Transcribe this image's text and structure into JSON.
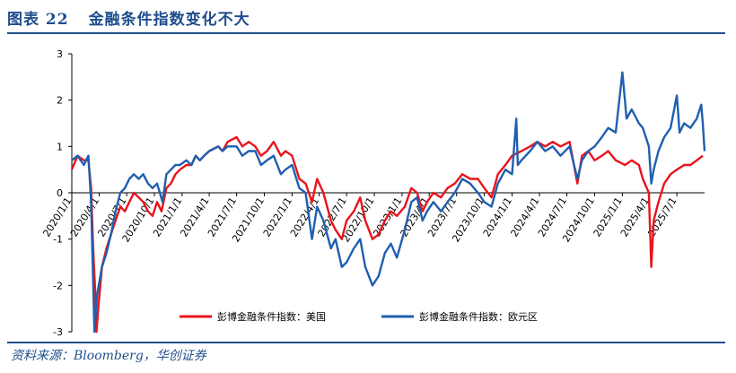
{
  "header": {
    "figure_label": "图表 22",
    "title": "金融条件指数变化不大"
  },
  "footer": {
    "source": "资料来源：Bloomberg，华创证券"
  },
  "colors": {
    "accent": "#1f4e8c",
    "us": "#e8141c",
    "eu": "#1f5fb0"
  },
  "chart_data": {
    "type": "line",
    "title": "",
    "xlabel": "",
    "ylabel": "",
    "ylim": [
      -3,
      3
    ],
    "yticks": [
      -3,
      -2,
      -1,
      0,
      1,
      2,
      3
    ],
    "xticks": [
      "2020/1/1",
      "2020/4/1",
      "2020/7/1",
      "2020/10/1",
      "2021/1/1",
      "2021/4/1",
      "2021/7/1",
      "2021/10/1",
      "2022/1/1",
      "2022/4/1",
      "2022/7/1",
      "2022/10/1",
      "2023/1/1",
      "2023/4/1",
      "2023/7/1",
      "2023/10/1",
      "2024/1/1",
      "2024/4/1",
      "2024/7/1",
      "2024/10/1",
      "2025/1/1",
      "2025/4/1",
      "2025/7/1"
    ],
    "xrange": [
      "2020/1/1",
      "2025/10/1"
    ],
    "legend_position": "bottom",
    "grid": false,
    "series": [
      {
        "name": "彭博金融条件指数：美国",
        "color": "#e8141c",
        "points": [
          [
            "2020/1/1",
            0.5
          ],
          [
            "2020/1/20",
            0.8
          ],
          [
            "2020/2/10",
            0.7
          ],
          [
            "2020/2/25",
            0.7
          ],
          [
            "2020/3/5",
            0.1
          ],
          [
            "2020/3/12",
            -1.2
          ],
          [
            "2020/3/20",
            -2.3
          ],
          [
            "2020/3/23",
            -3.0
          ],
          [
            "2020/3/30",
            -2.4
          ],
          [
            "2020/4/10",
            -1.6
          ],
          [
            "2020/4/25",
            -1.2
          ],
          [
            "2020/5/10",
            -0.9
          ],
          [
            "2020/5/25",
            -0.6
          ],
          [
            "2020/6/10",
            -0.3
          ],
          [
            "2020/6/25",
            -0.4
          ],
          [
            "2020/7/10",
            -0.2
          ],
          [
            "2020/7/25",
            0.0
          ],
          [
            "2020/8/10",
            -0.1
          ],
          [
            "2020/8/25",
            -0.2
          ],
          [
            "2020/9/10",
            -0.4
          ],
          [
            "2020/9/25",
            -0.5
          ],
          [
            "2020/10/10",
            -0.2
          ],
          [
            "2020/10/25",
            -0.4
          ],
          [
            "2020/11/10",
            0.1
          ],
          [
            "2020/11/25",
            0.2
          ],
          [
            "2020/12/10",
            0.4
          ],
          [
            "2020/12/25",
            0.5
          ],
          [
            "2021/1/15",
            0.6
          ],
          [
            "2021/2/1",
            0.6
          ],
          [
            "2021/2/15",
            0.8
          ],
          [
            "2021/3/1",
            0.7
          ],
          [
            "2021/3/15",
            0.8
          ],
          [
            "2021/4/1",
            0.9
          ],
          [
            "2021/5/1",
            1.0
          ],
          [
            "2021/5/15",
            0.9
          ],
          [
            "2021/6/1",
            1.1
          ],
          [
            "2021/7/1",
            1.2
          ],
          [
            "2021/7/20",
            1.0
          ],
          [
            "2021/8/10",
            1.1
          ],
          [
            "2021/9/1",
            1.0
          ],
          [
            "2021/9/20",
            0.8
          ],
          [
            "2021/10/10",
            0.9
          ],
          [
            "2021/11/1",
            1.1
          ],
          [
            "2021/11/25",
            0.8
          ],
          [
            "2021/12/10",
            0.9
          ],
          [
            "2022/1/1",
            0.8
          ],
          [
            "2022/1/25",
            0.3
          ],
          [
            "2022/2/15",
            0.2
          ],
          [
            "2022/3/8",
            -0.2
          ],
          [
            "2022/3/25",
            0.3
          ],
          [
            "2022/4/15",
            0.0
          ],
          [
            "2022/5/10",
            -0.6
          ],
          [
            "2022/5/25",
            -0.8
          ],
          [
            "2022/6/15",
            -1.0
          ],
          [
            "2022/7/1",
            -0.6
          ],
          [
            "2022/7/25",
            -0.4
          ],
          [
            "2022/8/15",
            -0.1
          ],
          [
            "2022/9/1",
            -0.6
          ],
          [
            "2022/9/25",
            -1.0
          ],
          [
            "2022/10/15",
            -0.9
          ],
          [
            "2022/11/5",
            -0.6
          ],
          [
            "2022/11/25",
            -0.4
          ],
          [
            "2022/12/15",
            -0.5
          ],
          [
            "2023/1/10",
            -0.3
          ],
          [
            "2023/2/1",
            0.1
          ],
          [
            "2023/2/20",
            0.0
          ],
          [
            "2023/3/10",
            -0.4
          ],
          [
            "2023/3/25",
            -0.2
          ],
          [
            "2023/4/15",
            0.0
          ],
          [
            "2023/5/10",
            -0.1
          ],
          [
            "2023/6/1",
            0.1
          ],
          [
            "2023/6/25",
            0.2
          ],
          [
            "2023/7/20",
            0.4
          ],
          [
            "2023/8/15",
            0.3
          ],
          [
            "2023/9/10",
            0.3
          ],
          [
            "2023/10/1",
            0.1
          ],
          [
            "2023/10/25",
            -0.1
          ],
          [
            "2023/11/15",
            0.4
          ],
          [
            "2023/12/10",
            0.6
          ],
          [
            "2024/1/1",
            0.8
          ],
          [
            "2024/2/1",
            0.9
          ],
          [
            "2024/3/1",
            1.0
          ],
          [
            "2024/3/25",
            1.1
          ],
          [
            "2024/4/20",
            1.0
          ],
          [
            "2024/5/15",
            1.1
          ],
          [
            "2024/6/10",
            1.0
          ],
          [
            "2024/7/10",
            1.1
          ],
          [
            "2024/8/5",
            0.2
          ],
          [
            "2024/8/20",
            0.8
          ],
          [
            "2024/9/10",
            0.9
          ],
          [
            "2024/10/1",
            0.7
          ],
          [
            "2024/10/25",
            0.8
          ],
          [
            "2024/11/15",
            0.9
          ],
          [
            "2024/12/10",
            0.7
          ],
          [
            "2025/1/10",
            0.6
          ],
          [
            "2025/2/1",
            0.7
          ],
          [
            "2025/2/25",
            0.6
          ],
          [
            "2025/3/10",
            0.3
          ],
          [
            "2025/3/30",
            0.0
          ],
          [
            "2025/4/7",
            -1.6
          ],
          [
            "2025/4/15",
            -0.6
          ],
          [
            "2025/5/1",
            -0.2
          ],
          [
            "2025/5/20",
            0.2
          ],
          [
            "2025/6/10",
            0.4
          ],
          [
            "2025/7/1",
            0.5
          ],
          [
            "2025/7/25",
            0.6
          ],
          [
            "2025/8/15",
            0.6
          ],
          [
            "2025/9/5",
            0.7
          ],
          [
            "2025/9/25",
            0.8
          ]
        ]
      },
      {
        "name": "彭博金融条件指数：欧元区",
        "color": "#1f5fb0",
        "points": [
          [
            "2020/1/1",
            0.7
          ],
          [
            "2020/1/20",
            0.8
          ],
          [
            "2020/2/10",
            0.6
          ],
          [
            "2020/2/25",
            0.8
          ],
          [
            "2020/3/5",
            -0.2
          ],
          [
            "2020/3/10",
            -1.5
          ],
          [
            "2020/3/16",
            -3.0
          ],
          [
            "2020/3/25",
            -2.2
          ],
          [
            "2020/4/10",
            -1.6
          ],
          [
            "2020/4/25",
            -1.3
          ],
          [
            "2020/5/10",
            -0.9
          ],
          [
            "2020/5/25",
            -0.4
          ],
          [
            "2020/6/10",
            0.0
          ],
          [
            "2020/6/25",
            0.1
          ],
          [
            "2020/7/10",
            0.3
          ],
          [
            "2020/7/25",
            0.4
          ],
          [
            "2020/8/10",
            0.3
          ],
          [
            "2020/8/25",
            0.4
          ],
          [
            "2020/9/10",
            0.2
          ],
          [
            "2020/9/25",
            0.1
          ],
          [
            "2020/10/10",
            0.2
          ],
          [
            "2020/10/28",
            -0.2
          ],
          [
            "2020/11/10",
            0.4
          ],
          [
            "2020/11/25",
            0.5
          ],
          [
            "2020/12/10",
            0.6
          ],
          [
            "2020/12/25",
            0.6
          ],
          [
            "2021/1/15",
            0.7
          ],
          [
            "2021/2/1",
            0.6
          ],
          [
            "2021/2/15",
            0.8
          ],
          [
            "2021/3/1",
            0.7
          ],
          [
            "2021/3/15",
            0.8
          ],
          [
            "2021/4/1",
            0.9
          ],
          [
            "2021/5/1",
            1.0
          ],
          [
            "2021/5/15",
            0.9
          ],
          [
            "2021/6/1",
            1.0
          ],
          [
            "2021/7/1",
            1.0
          ],
          [
            "2021/7/20",
            0.8
          ],
          [
            "2021/8/10",
            0.9
          ],
          [
            "2021/9/1",
            0.9
          ],
          [
            "2021/9/20",
            0.6
          ],
          [
            "2021/10/10",
            0.7
          ],
          [
            "2021/11/1",
            0.8
          ],
          [
            "2021/11/25",
            0.4
          ],
          [
            "2021/12/10",
            0.5
          ],
          [
            "2022/1/1",
            0.6
          ],
          [
            "2022/1/25",
            0.1
          ],
          [
            "2022/2/15",
            0.0
          ],
          [
            "2022/3/8",
            -1.0
          ],
          [
            "2022/3/25",
            -0.3
          ],
          [
            "2022/4/15",
            -0.6
          ],
          [
            "2022/5/10",
            -1.2
          ],
          [
            "2022/5/25",
            -1.0
          ],
          [
            "2022/6/15",
            -1.6
          ],
          [
            "2022/7/1",
            -1.5
          ],
          [
            "2022/7/25",
            -1.2
          ],
          [
            "2022/8/15",
            -1.0
          ],
          [
            "2022/9/1",
            -1.6
          ],
          [
            "2022/9/25",
            -2.0
          ],
          [
            "2022/10/15",
            -1.8
          ],
          [
            "2022/11/5",
            -1.3
          ],
          [
            "2022/11/25",
            -1.1
          ],
          [
            "2022/12/15",
            -1.4
          ],
          [
            "2023/1/10",
            -0.8
          ],
          [
            "2023/2/1",
            -0.2
          ],
          [
            "2023/2/20",
            -0.1
          ],
          [
            "2023/3/10",
            -0.6
          ],
          [
            "2023/3/25",
            -0.4
          ],
          [
            "2023/4/15",
            -0.2
          ],
          [
            "2023/5/10",
            -0.4
          ],
          [
            "2023/6/1",
            -0.2
          ],
          [
            "2023/6/25",
            0.0
          ],
          [
            "2023/7/20",
            0.3
          ],
          [
            "2023/8/15",
            0.2
          ],
          [
            "2023/9/10",
            0.0
          ],
          [
            "2023/10/1",
            -0.2
          ],
          [
            "2023/10/25",
            -0.3
          ],
          [
            "2023/11/15",
            0.2
          ],
          [
            "2023/12/10",
            0.5
          ],
          [
            "2024/1/1",
            0.4
          ],
          [
            "2024/1/15",
            1.6
          ],
          [
            "2024/1/20",
            0.6
          ],
          [
            "2024/2/1",
            0.7
          ],
          [
            "2024/3/1",
            0.9
          ],
          [
            "2024/3/25",
            1.1
          ],
          [
            "2024/4/20",
            0.9
          ],
          [
            "2024/5/15",
            1.0
          ],
          [
            "2024/6/10",
            0.8
          ],
          [
            "2024/7/10",
            1.0
          ],
          [
            "2024/8/5",
            0.3
          ],
          [
            "2024/8/20",
            0.7
          ],
          [
            "2024/9/10",
            0.9
          ],
          [
            "2024/10/1",
            1.0
          ],
          [
            "2024/10/25",
            1.2
          ],
          [
            "2024/11/15",
            1.4
          ],
          [
            "2024/12/10",
            1.3
          ],
          [
            "2025/1/1",
            2.6
          ],
          [
            "2025/1/15",
            1.6
          ],
          [
            "2025/2/1",
            1.8
          ],
          [
            "2025/2/25",
            1.5
          ],
          [
            "2025/3/10",
            1.4
          ],
          [
            "2025/3/30",
            1.0
          ],
          [
            "2025/4/7",
            0.2
          ],
          [
            "2025/4/15",
            0.5
          ],
          [
            "2025/5/1",
            0.9
          ],
          [
            "2025/5/20",
            1.2
          ],
          [
            "2025/6/10",
            1.4
          ],
          [
            "2025/7/1",
            2.1
          ],
          [
            "2025/7/10",
            1.3
          ],
          [
            "2025/7/25",
            1.5
          ],
          [
            "2025/8/15",
            1.4
          ],
          [
            "2025/9/5",
            1.6
          ],
          [
            "2025/9/20",
            1.9
          ],
          [
            "2025/9/25",
            1.5
          ],
          [
            "2025/10/1",
            0.9
          ]
        ]
      }
    ]
  }
}
